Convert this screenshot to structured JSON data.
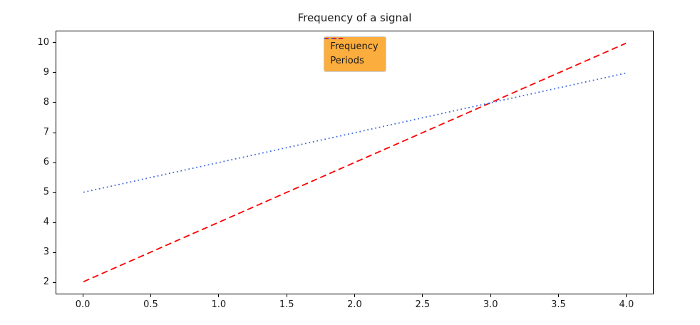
{
  "chart_data": {
    "type": "line",
    "title": "Frequency of a signal",
    "xlabel": "",
    "ylabel": "",
    "xlim": [
      -0.2,
      4.2
    ],
    "ylim": [
      1.6,
      10.4
    ],
    "grid": false,
    "background": "#ffffff",
    "frame_color": "#000000",
    "x": [
      0,
      1,
      2,
      3,
      4
    ],
    "series": [
      {
        "name": "Frequency",
        "x": [
          0,
          1,
          2,
          3,
          4
        ],
        "y": [
          2,
          4,
          6,
          8,
          10
        ],
        "color": "#ff0000",
        "style": "dashed"
      },
      {
        "name": "Periods",
        "x": [
          0,
          1,
          2,
          3,
          4
        ],
        "y": [
          5,
          6,
          7,
          8,
          9
        ],
        "color": "#4169e1",
        "style": "dotted"
      }
    ],
    "xticks": [
      {
        "v": 0.0,
        "label": "0.0"
      },
      {
        "v": 0.5,
        "label": "0.5"
      },
      {
        "v": 1.0,
        "label": "1.0"
      },
      {
        "v": 1.5,
        "label": "1.5"
      },
      {
        "v": 2.0,
        "label": "2.0"
      },
      {
        "v": 2.5,
        "label": "2.5"
      },
      {
        "v": 3.0,
        "label": "3.0"
      },
      {
        "v": 3.5,
        "label": "3.5"
      },
      {
        "v": 4.0,
        "label": "4.0"
      }
    ],
    "yticks": [
      {
        "v": 2,
        "label": "2"
      },
      {
        "v": 3,
        "label": "3"
      },
      {
        "v": 4,
        "label": "4"
      },
      {
        "v": 5,
        "label": "5"
      },
      {
        "v": 6,
        "label": "6"
      },
      {
        "v": 7,
        "label": "7"
      },
      {
        "v": 8,
        "label": "8"
      },
      {
        "v": 9,
        "label": "9"
      },
      {
        "v": 10,
        "label": "10"
      }
    ],
    "legend": {
      "position": "upper center",
      "facecolor": "#fbad3d",
      "edgecolor": "#cfcfcf",
      "items": [
        {
          "label": "Frequency",
          "color": "#ff0000",
          "style": "dashed"
        },
        {
          "label": "Periods",
          "color": "#4169e1",
          "style": "dotted"
        }
      ]
    }
  }
}
